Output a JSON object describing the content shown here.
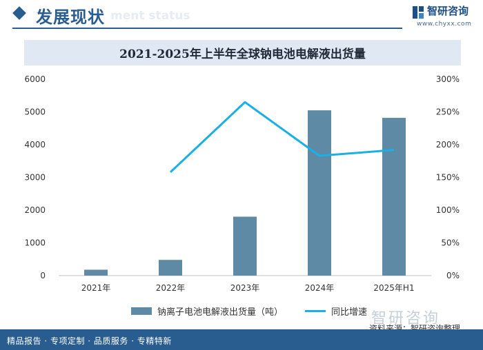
{
  "header": {
    "title": "发展现状",
    "subtitle": "ment status",
    "brand": "智研咨询",
    "brand_url": "www.chyxx.com"
  },
  "watermark": "智研咨询",
  "source": "资料来源：智研咨询整理",
  "footer": "精品报告 · 专项定制 · 品质服务 · 专精特新",
  "colors": {
    "bar": "#5f8aa6",
    "line": "#1ab0e6",
    "accent": "#2a5d8f"
  },
  "chart_data": {
    "type": "bar",
    "title": "2021-2025年上半年全球钠电池电解液出货量",
    "categories": [
      "2021年",
      "2022年",
      "2023年",
      "2024年",
      "2025年H1"
    ],
    "series": [
      {
        "name": "钠离子电池电解液出货量（吨）",
        "type": "bar",
        "axis": "left",
        "values": [
          180,
          480,
          1800,
          5050,
          4820
        ]
      },
      {
        "name": "同比增速",
        "type": "line",
        "axis": "right",
        "values": [
          null,
          158,
          265,
          183,
          192
        ]
      }
    ],
    "y_left": {
      "range": [
        0,
        6000
      ],
      "ticks": [
        "0",
        "1000",
        "2000",
        "3000",
        "4000",
        "5000",
        "6000"
      ]
    },
    "y_right": {
      "range": [
        0,
        300
      ],
      "unit": "%",
      "ticks": [
        "0%",
        "50%",
        "100%",
        "150%",
        "200%",
        "250%",
        "300%"
      ]
    },
    "legend": "bottom",
    "grid": false
  }
}
